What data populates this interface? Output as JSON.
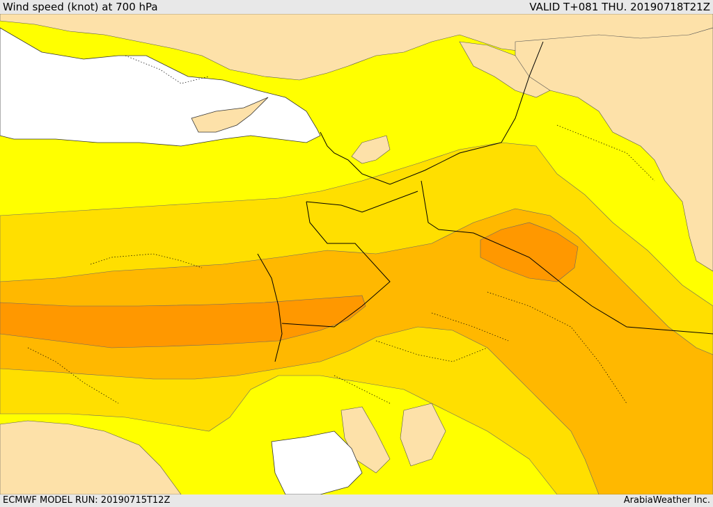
{
  "header": {
    "title": "Wind speed (knot) at 700 hPa",
    "valid": "VALID T+081 THU. 20190718T21Z"
  },
  "footer": {
    "run": "ECMWF MODEL RUN: 20190715T12Z",
    "credit": "ArabiaWeather Inc."
  },
  "colors": {
    "land_light": "#fde1a9",
    "speed_low": "#ffff00",
    "speed_mid": "#ffdf00",
    "speed_high": "#ffb800",
    "speed_max": "#ff9800",
    "water": "#ffffff",
    "border": "#000000"
  }
}
